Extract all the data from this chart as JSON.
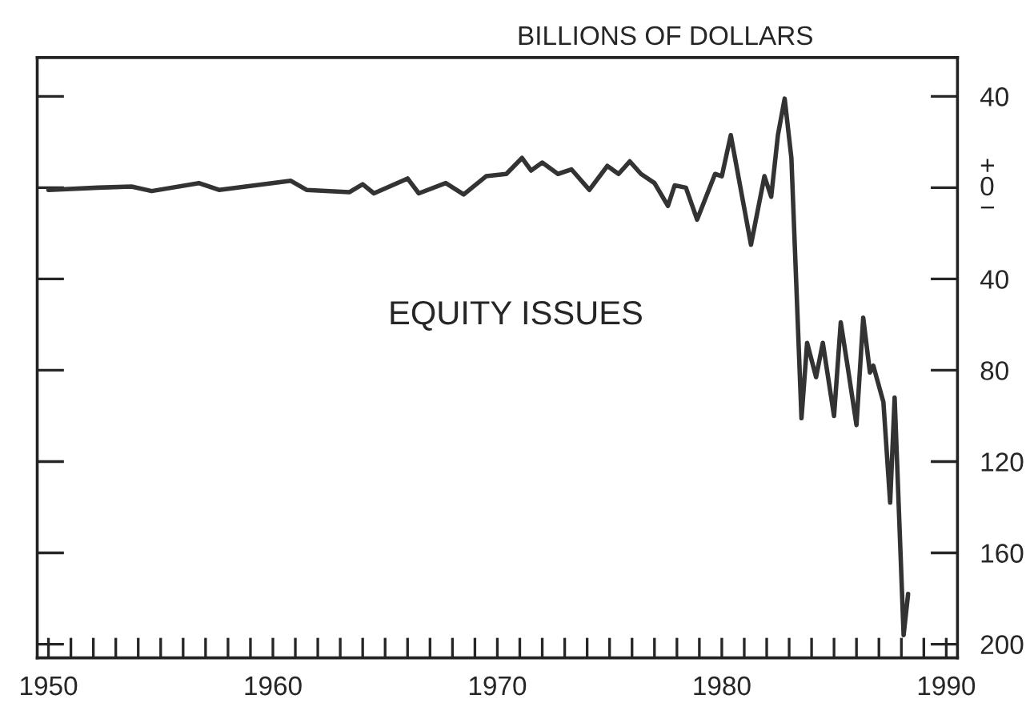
{
  "chart_data": {
    "type": "line",
    "title": "EQUITY ISSUES",
    "ylabel": "BILLIONS OF DOLLARS",
    "x": [
      1950.0,
      1952.2,
      1953.7,
      1954.6,
      1956.7,
      1957.6,
      1960.8,
      1961.5,
      1963.4,
      1964.0,
      1964.5,
      1966.0,
      1966.5,
      1967.7,
      1968.5,
      1969.5,
      1970.4,
      1971.1,
      1971.5,
      1972.0,
      1972.7,
      1973.3,
      1974.1,
      1974.9,
      1975.4,
      1975.9,
      1976.4,
      1977.0,
      1977.6,
      1977.9,
      1978.4,
      1978.9,
      1979.7,
      1980.0,
      1980.4,
      1981.3,
      1981.9,
      1982.2,
      1982.5,
      1982.8,
      1983.1,
      1983.55,
      1983.8,
      1984.2,
      1984.5,
      1985.0,
      1985.3,
      1985.6,
      1986.0,
      1986.3,
      1986.6,
      1986.75,
      1987.2,
      1987.5,
      1987.7,
      1988.1,
      1988.3
    ],
    "series": [
      {
        "color": "#333333",
        "values": [
          -1,
          0,
          0.5,
          -1.5,
          2,
          -1,
          3,
          -1,
          -2,
          1.5,
          -2.5,
          4,
          -2.5,
          2,
          -3,
          5,
          6,
          13,
          7.5,
          11,
          6,
          8,
          -1,
          9.5,
          6,
          11.5,
          6,
          2,
          -8,
          1,
          0,
          -14,
          6,
          5,
          23,
          -25,
          5,
          -4,
          23,
          39,
          13,
          -101,
          -68,
          -83,
          -68,
          -100,
          -59,
          -78,
          -104,
          -57,
          -81,
          -78,
          -94,
          -138,
          -92,
          -196,
          -178
        ]
      }
    ],
    "xlim": [
      1949.5,
      1990.5
    ],
    "xticks": [
      1950,
      {
        "value": 1951,
        "label": null
      },
      {
        "value": 1952,
        "label": null
      },
      {
        "value": 1953,
        "label": null
      },
      {
        "value": 1954,
        "label": null
      },
      {
        "value": 1955,
        "label": null
      },
      {
        "value": 1956,
        "label": null
      },
      {
        "value": 1957,
        "label": null
      },
      {
        "value": 1958,
        "label": null
      },
      {
        "value": 1959,
        "label": null
      },
      1960,
      {
        "value": 1961,
        "label": null
      },
      {
        "value": 1962,
        "label": null
      },
      {
        "value": 1963,
        "label": null
      },
      {
        "value": 1964,
        "label": null
      },
      {
        "value": 1965,
        "label": null
      },
      {
        "value": 1966,
        "label": null
      },
      {
        "value": 1967,
        "label": null
      },
      {
        "value": 1968,
        "label": null
      },
      {
        "value": 1969,
        "label": null
      },
      1970,
      {
        "value": 1971,
        "label": null
      },
      {
        "value": 1972,
        "label": null
      },
      {
        "value": 1973,
        "label": null
      },
      {
        "value": 1974,
        "label": null
      },
      {
        "value": 1975,
        "label": null
      },
      {
        "value": 1976,
        "label": null
      },
      {
        "value": 1977,
        "label": null
      },
      {
        "value": 1978,
        "label": null
      },
      {
        "value": 1979,
        "label": null
      },
      1980,
      {
        "value": 1981,
        "label": null
      },
      {
        "value": 1982,
        "label": null
      },
      {
        "value": 1983,
        "label": null
      },
      {
        "value": 1984,
        "label": null
      },
      {
        "value": 1985,
        "label": null
      },
      {
        "value": 1986,
        "label": null
      },
      {
        "value": 1987,
        "label": null
      },
      {
        "value": 1988,
        "label": null
      },
      {
        "value": 1989,
        "label": null
      },
      1990
    ],
    "ylim": [
      -206,
      57
    ],
    "yticks": [
      40,
      {
        "value": 0,
        "label": "+\n0\n−"
      },
      {
        "value": -40,
        "label": "40"
      },
      {
        "value": -80,
        "label": "80"
      },
      {
        "value": -120,
        "label": "120"
      },
      {
        "value": -160,
        "label": "160"
      },
      {
        "value": -200,
        "label": "200"
      }
    ],
    "grid": false,
    "legend": false,
    "marker": "none",
    "line_style": "solid"
  }
}
